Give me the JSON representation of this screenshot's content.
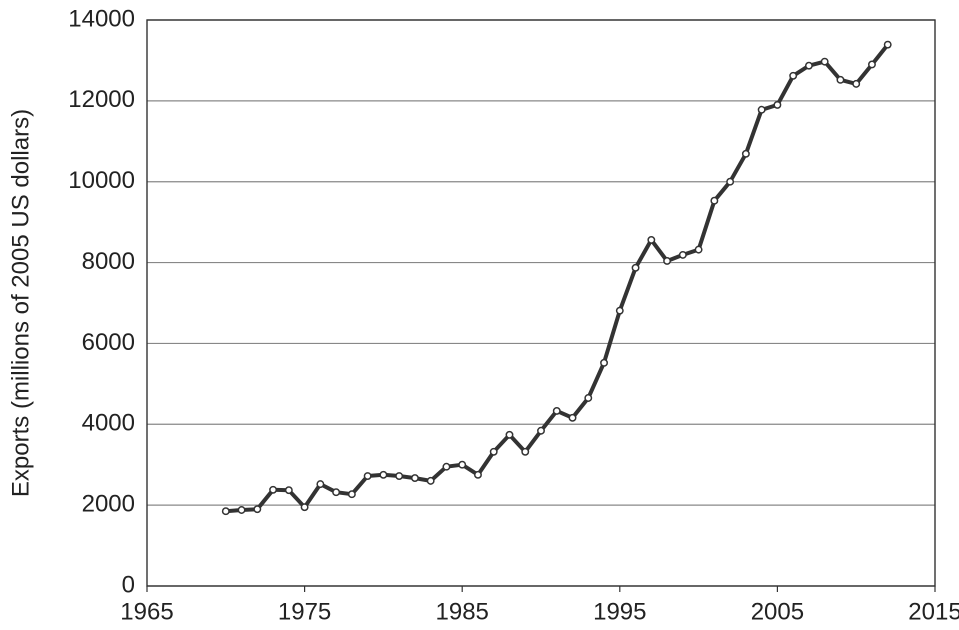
{
  "chart_data": {
    "type": "line",
    "y_label": "Exports (millions of 2005 US dollars)",
    "x": [
      1970,
      1971,
      1972,
      1973,
      1974,
      1975,
      1976,
      1977,
      1978,
      1979,
      1980,
      1981,
      1982,
      1983,
      1984,
      1985,
      1986,
      1987,
      1988,
      1989,
      1990,
      1991,
      1992,
      1993,
      1994,
      1995,
      1996,
      1997,
      1998,
      1999,
      2000,
      2001,
      2002,
      2003,
      2004,
      2005,
      2006,
      2007,
      2008,
      2009,
      2010,
      2011,
      2012
    ],
    "values": [
      1850,
      1880,
      1900,
      2380,
      2370,
      1950,
      2520,
      2320,
      2270,
      2720,
      2750,
      2720,
      2670,
      2600,
      2950,
      3000,
      2750,
      3320,
      3740,
      3320,
      3840,
      4330,
      4160,
      4650,
      5520,
      6810,
      7870,
      8560,
      8040,
      8190,
      8320,
      9530,
      10000,
      10690,
      11780,
      11900,
      12620,
      12870,
      12970,
      12520,
      12420,
      12900,
      13390
    ],
    "color": "#333333",
    "xlim": [
      1965,
      2015
    ],
    "xticks": [
      1965,
      1975,
      1985,
      1995,
      2005,
      2015
    ],
    "ylim": [
      0,
      14000
    ],
    "yticks": [
      0,
      2000,
      4000,
      6000,
      8000,
      10000,
      12000,
      14000
    ],
    "grid": true
  }
}
